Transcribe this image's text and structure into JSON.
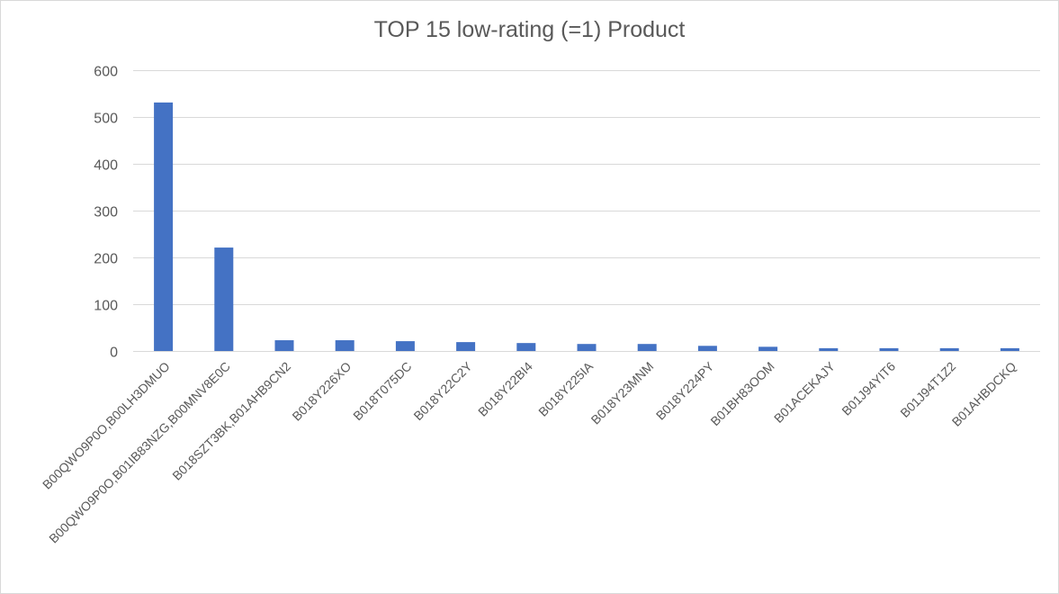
{
  "chart_data": {
    "type": "bar",
    "title": "TOP 15 low-rating (=1) Product",
    "xlabel": "",
    "ylabel": "",
    "categories": [
      "B00QWO9P0O,B00LH3DMUO",
      "B00QWO9P0O,B01IB83NZG,B00MNV8E0C",
      "B018SZT3BK,B01AHB9CN2",
      "B018Y226XO",
      "B018T075DC",
      "B018Y22C2Y",
      "B018Y22BI4",
      "B018Y225IA",
      "B018Y23MNM",
      "B018Y224PY",
      "B01BH83OOM",
      "B01ACEKAJY",
      "B01J94YIT6",
      "B01J94T1Z2",
      "B01AHBDCKQ"
    ],
    "values": [
      531,
      221,
      23,
      23,
      21,
      19,
      17,
      15,
      15,
      11,
      9,
      6,
      6,
      6,
      6
    ],
    "ylim": [
      0,
      600
    ],
    "yticks": [
      0,
      100,
      200,
      300,
      400,
      500,
      600
    ],
    "grid": true,
    "legend": "none",
    "bar_color": "#4472c4",
    "grid_color": "#d9d9d9",
    "text_color": "#595959"
  }
}
